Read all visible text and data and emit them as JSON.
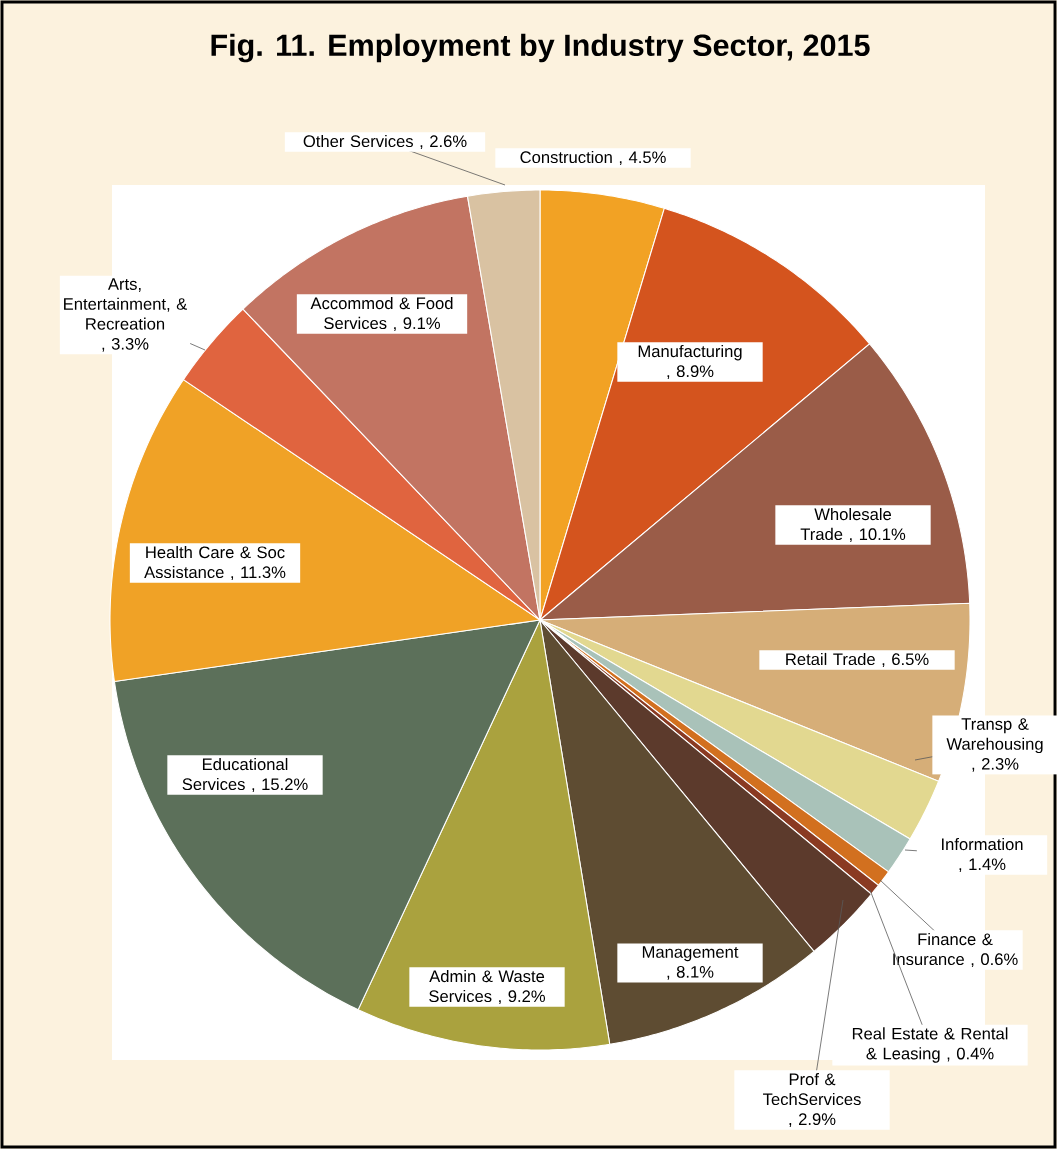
{
  "chart_data": {
    "type": "pie",
    "title": "Fig. 11. Employment by Industry Sector, 2015",
    "categories": [
      "Construction",
      "Manufacturing",
      "Wholesale Trade",
      "Retail Trade",
      "Transp & Warehousing",
      "Information",
      "Finance & Insurance",
      "Real Estate & Rental & Leasing",
      "Prof & TechServices",
      "Management",
      "Admin & Waste Services",
      "Educational Services",
      "Health Care & Soc Assistance",
      "Arts, Entertainment, & Recreation",
      "Accommod & Food Services",
      "Other Services"
    ],
    "values": [
      4.5,
      8.9,
      10.1,
      6.5,
      2.3,
      1.4,
      0.6,
      0.4,
      2.9,
      8.1,
      9.2,
      15.2,
      11.3,
      3.3,
      9.1,
      2.6
    ],
    "value_labels": [
      ", 4.5%",
      ", 8.9%",
      ", 10.1%",
      ", 6.5%",
      ", 2.3%",
      ", 1.4%",
      ", 0.6%",
      ", 0.4%",
      ", 2.9%",
      ", 8.1%",
      ", 9.2%",
      ", 15.2%",
      ", 11.3%",
      ", 3.3%",
      ", 9.1%",
      ", 2.6%"
    ],
    "colors": [
      "#f2a224",
      "#d4541e",
      "#9a5c48",
      "#d6ae78",
      "#e2d890",
      "#a9c2b9",
      "#d2701f",
      "#8a3a22",
      "#5c3a2c",
      "#5e4c32",
      "#aaa23e",
      "#5c705a",
      "#f0a226",
      "#e0643f",
      "#c27462",
      "#d9c2a2"
    ]
  }
}
